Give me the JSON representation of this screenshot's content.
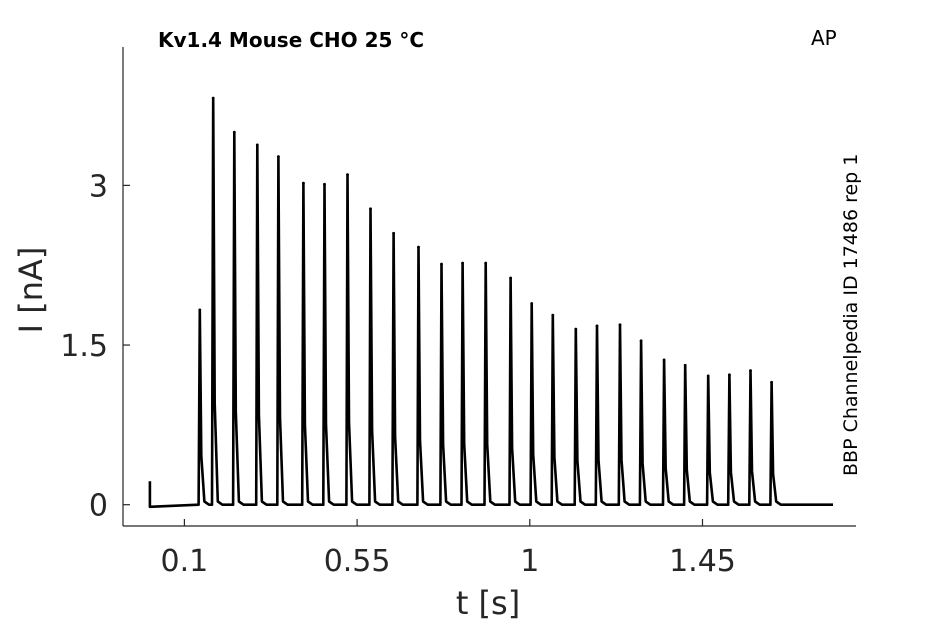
{
  "chart_data": {
    "type": "line",
    "title": "Kv1.4  Mouse  CHO  25 °C",
    "corner_label": "AP",
    "side_label": "BBP Channelpedia ID 17486 rep 1",
    "xlabel": "t [s]",
    "ylabel": "I [nA]",
    "xlim": [
      -0.06,
      1.85
    ],
    "ylim": [
      -0.2,
      4.3
    ],
    "xticks": [
      0.1,
      0.55,
      1,
      1.45
    ],
    "xtick_labels": [
      "0.1",
      "0.55",
      "1",
      "1.45"
    ],
    "yticks": [
      0,
      1.5,
      3
    ],
    "ytick_labels": [
      "0",
      "1.5",
      "3"
    ],
    "baseline": 0.0,
    "trace_start": 0.01,
    "trace_end": 1.79,
    "artifact": {
      "t": 0.01,
      "value": 0.22
    },
    "grid": false,
    "legend": "none",
    "series": [
      {
        "spike_times": [
          0.14,
          0.175,
          0.23,
          0.29,
          0.345,
          0.41,
          0.465,
          0.525,
          0.585,
          0.645,
          0.71,
          0.77,
          0.825,
          0.885,
          0.95,
          1.005,
          1.06,
          1.12,
          1.175,
          1.235,
          1.29,
          1.35,
          1.405,
          1.465,
          1.52,
          1.575,
          1.63
        ],
        "spike_peaks": [
          1.83,
          3.82,
          3.5,
          3.38,
          3.27,
          3.02,
          3.01,
          3.1,
          2.78,
          2.55,
          2.42,
          2.26,
          2.27,
          2.27,
          2.13,
          1.89,
          1.78,
          1.65,
          1.68,
          1.69,
          1.54,
          1.36,
          1.31,
          1.21,
          1.22,
          1.26,
          1.15
        ]
      }
    ]
  }
}
